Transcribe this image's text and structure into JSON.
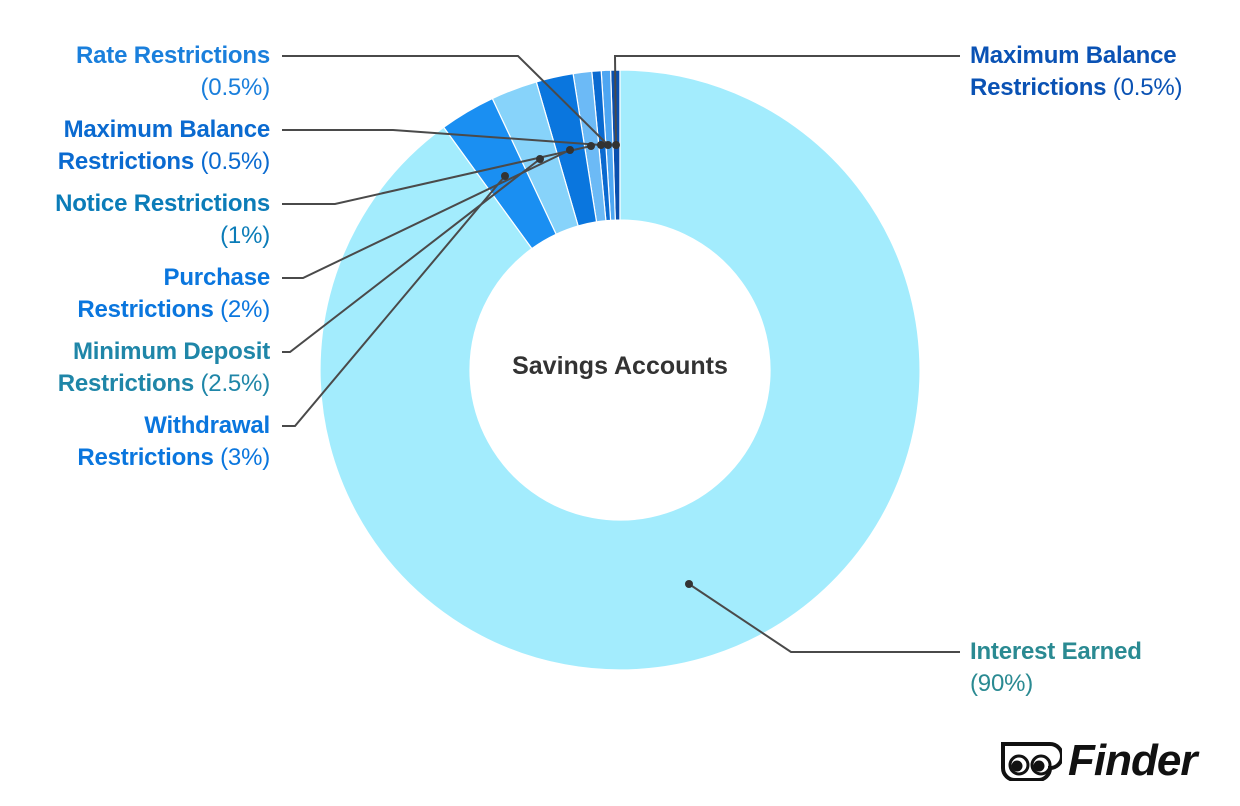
{
  "chart_data": {
    "type": "pie",
    "variant": "donut",
    "title": "Savings Accounts",
    "center": [
      620,
      370
    ],
    "outer_radius": 300,
    "inner_radius": 150,
    "start_angle_deg": 0,
    "direction": "counter-clockwise-from-top-for-small-slices",
    "slices": [
      {
        "name": "Maximum Balance Restrictions",
        "value": 0.5,
        "color": "#0a4fae",
        "label_color": "#0a52b4",
        "side": "right"
      },
      {
        "name": "Rate Restrictions",
        "value": 0.5,
        "color": "#4ea6f2",
        "label_color": "#1a7fdc",
        "side": "left"
      },
      {
        "name": "Maximum Balance Restrictions",
        "value": 0.5,
        "color": "#0a6ad0",
        "label_color": "#0a6ad0",
        "side": "left"
      },
      {
        "name": "Notice Restrictions",
        "value": 1,
        "color": "#6cbaf6",
        "label_color": "#0b7cb8",
        "side": "left"
      },
      {
        "name": "Purchase Restrictions",
        "value": 2,
        "color": "#0a76de",
        "label_color": "#0a76de",
        "side": "left"
      },
      {
        "name": "Minimum Deposit Restrictions",
        "value": 2.5,
        "color": "#87d3fa",
        "label_color": "#1f86a8",
        "side": "left"
      },
      {
        "name": "Withdrawal Restrictions",
        "value": 3,
        "color": "#1a8ff2",
        "label_color": "#0a76de",
        "side": "left"
      },
      {
        "name": "Interest Earned",
        "value": 90,
        "color": "#a3ecfd",
        "label_color": "#2a8a92",
        "side": "right"
      }
    ],
    "units": "%"
  },
  "labels": {
    "rate": {
      "name": "Rate Restrictions",
      "pct": "(0.5%)"
    },
    "maxbal_left": {
      "name1": "Maximum Balance",
      "name2": "Restrictions",
      "pct": "(0.5%)"
    },
    "notice": {
      "name": "Notice Restrictions",
      "pct": "(1%)"
    },
    "purchase": {
      "name1": "Purchase",
      "name2": "Restrictions",
      "pct": "(2%)"
    },
    "mindep": {
      "name1": "Minimum Deposit",
      "name2": "Restrictions",
      "pct": "(2.5%)"
    },
    "withdrawal": {
      "name1": "Withdrawal",
      "name2": "Restrictions",
      "pct": "(3%)"
    },
    "maxbal_right": {
      "name1": "Maximum Balance",
      "name2": "Restrictions",
      "pct": "(0.5%)"
    },
    "interest": {
      "name": "Interest Earned",
      "pct": "(90%)"
    }
  },
  "center_title": "Savings Accounts",
  "brand": {
    "name": "Finder"
  }
}
